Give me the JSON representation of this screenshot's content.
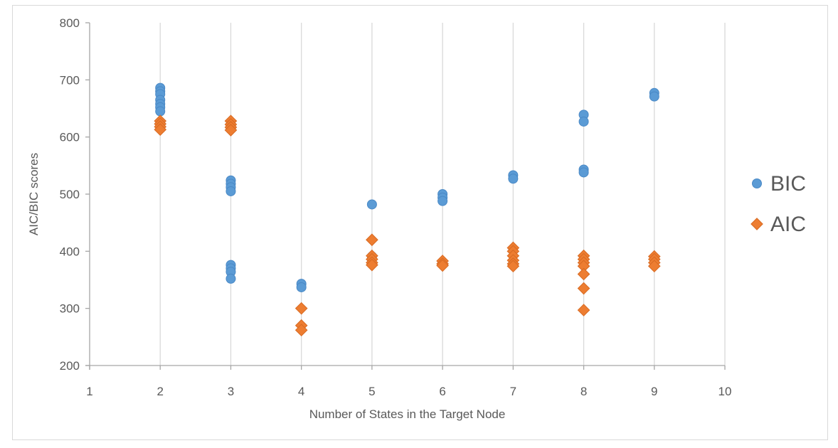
{
  "chart_data": {
    "type": "scatter",
    "title": "",
    "xlabel": "Number of States in the Target Node",
    "ylabel": "AIC/BIC scores",
    "xlim": [
      1,
      10
    ],
    "ylim": [
      200,
      800
    ],
    "xticks": [
      "1",
      "2",
      "3",
      "4",
      "5",
      "6",
      "7",
      "8",
      "9",
      "10"
    ],
    "yticks": [
      "200",
      "300",
      "400",
      "500",
      "600",
      "700",
      "800"
    ],
    "grid": "vertical",
    "legend_position": "right",
    "series": [
      {
        "name": "BIC",
        "marker": "circle",
        "color": "#5b9bd5",
        "points": [
          {
            "x": 2,
            "y": 686
          },
          {
            "x": 2,
            "y": 680
          },
          {
            "x": 2,
            "y": 675
          },
          {
            "x": 2,
            "y": 665
          },
          {
            "x": 2,
            "y": 658
          },
          {
            "x": 2,
            "y": 652
          },
          {
            "x": 2,
            "y": 645
          },
          {
            "x": 3,
            "y": 524
          },
          {
            "x": 3,
            "y": 518
          },
          {
            "x": 3,
            "y": 512
          },
          {
            "x": 3,
            "y": 505
          },
          {
            "x": 3,
            "y": 376
          },
          {
            "x": 3,
            "y": 370
          },
          {
            "x": 3,
            "y": 364
          },
          {
            "x": 3,
            "y": 352
          },
          {
            "x": 4,
            "y": 343
          },
          {
            "x": 4,
            "y": 337
          },
          {
            "x": 5,
            "y": 482
          },
          {
            "x": 5,
            "y": 391
          },
          {
            "x": 5,
            "y": 386
          },
          {
            "x": 6,
            "y": 500
          },
          {
            "x": 6,
            "y": 494
          },
          {
            "x": 6,
            "y": 488
          },
          {
            "x": 7,
            "y": 533
          },
          {
            "x": 7,
            "y": 527
          },
          {
            "x": 8,
            "y": 639
          },
          {
            "x": 8,
            "y": 627
          },
          {
            "x": 8,
            "y": 543
          },
          {
            "x": 8,
            "y": 538
          },
          {
            "x": 9,
            "y": 677
          },
          {
            "x": 9,
            "y": 671
          }
        ]
      },
      {
        "name": "AIC",
        "marker": "diamond",
        "color": "#ed7d31",
        "points": [
          {
            "x": 2,
            "y": 628
          },
          {
            "x": 2,
            "y": 623
          },
          {
            "x": 2,
            "y": 618
          },
          {
            "x": 2,
            "y": 613
          },
          {
            "x": 3,
            "y": 628
          },
          {
            "x": 3,
            "y": 622
          },
          {
            "x": 3,
            "y": 617
          },
          {
            "x": 3,
            "y": 612
          },
          {
            "x": 4,
            "y": 300
          },
          {
            "x": 4,
            "y": 270
          },
          {
            "x": 4,
            "y": 262
          },
          {
            "x": 5,
            "y": 420
          },
          {
            "x": 5,
            "y": 392
          },
          {
            "x": 5,
            "y": 386
          },
          {
            "x": 5,
            "y": 380
          },
          {
            "x": 5,
            "y": 376
          },
          {
            "x": 6,
            "y": 383
          },
          {
            "x": 6,
            "y": 378
          },
          {
            "x": 6,
            "y": 375
          },
          {
            "x": 7,
            "y": 406
          },
          {
            "x": 7,
            "y": 400
          },
          {
            "x": 7,
            "y": 392
          },
          {
            "x": 7,
            "y": 384
          },
          {
            "x": 7,
            "y": 378
          },
          {
            "x": 7,
            "y": 374
          },
          {
            "x": 8,
            "y": 392
          },
          {
            "x": 8,
            "y": 386
          },
          {
            "x": 8,
            "y": 380
          },
          {
            "x": 8,
            "y": 374
          },
          {
            "x": 8,
            "y": 360
          },
          {
            "x": 8,
            "y": 335
          },
          {
            "x": 8,
            "y": 297
          },
          {
            "x": 9,
            "y": 391
          },
          {
            "x": 9,
            "y": 386
          },
          {
            "x": 9,
            "y": 380
          },
          {
            "x": 9,
            "y": 374
          }
        ]
      }
    ]
  }
}
